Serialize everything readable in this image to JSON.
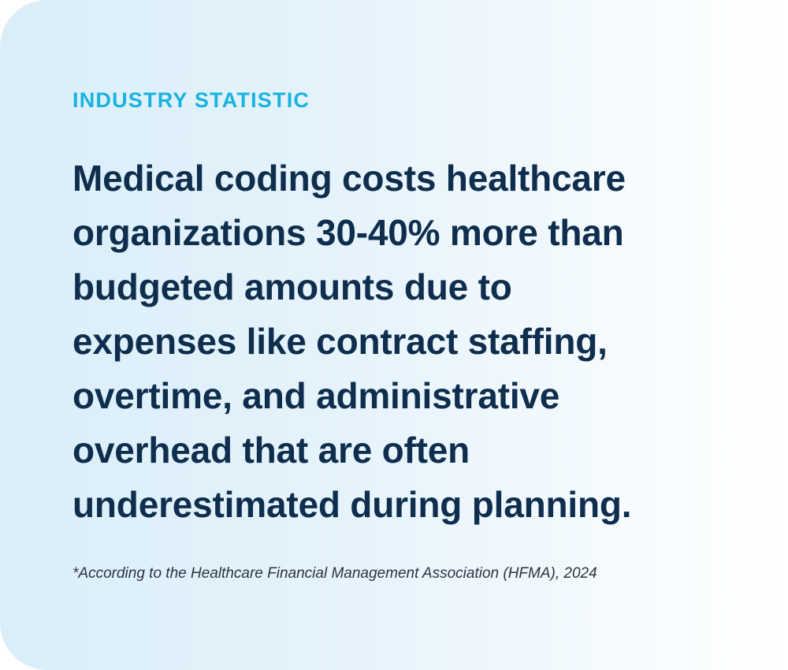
{
  "card": {
    "eyebrow": "INDUSTRY STATISTIC",
    "headline_lines": [
      "Medical coding costs healthcare",
      "organizations 30-40% more than",
      "budgeted amounts due to",
      "expenses like contract staffing,",
      "overtime, and administrative",
      "overhead that are often",
      "underestimated during planning."
    ],
    "source": "*According to the Healthcare Financial Management Association (HFMA), 2024"
  },
  "colors": {
    "accent": "#19b3df",
    "headline": "#0f2e4d",
    "source": "#2b3440",
    "background_start": "#d9eef9",
    "background_end": "#ffffff"
  }
}
